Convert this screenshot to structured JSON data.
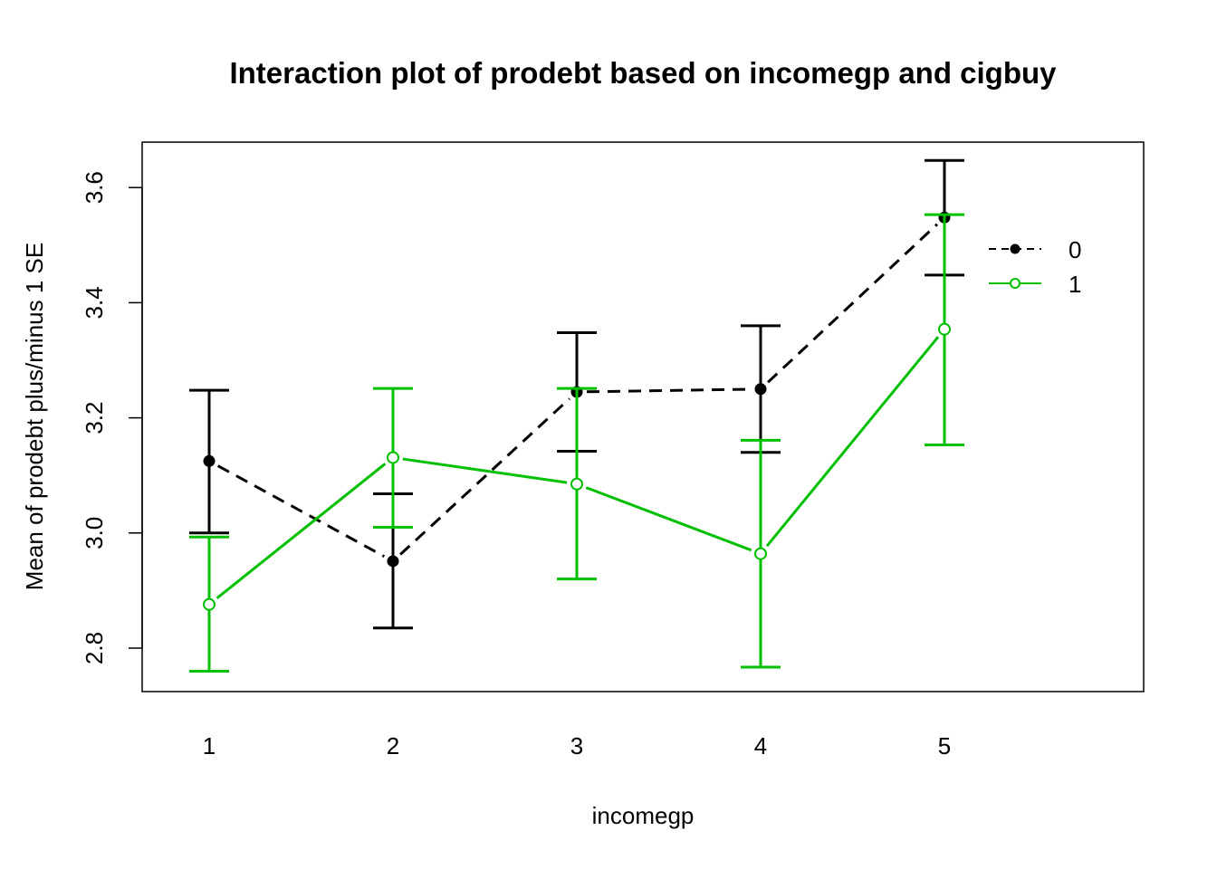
{
  "chart_data": {
    "type": "line",
    "title": "Interaction plot of prodebt based on incomegp and cigbuy",
    "xlabel": "incomegp",
    "ylabel": "Mean of  prodebt plus/minus 1 SE",
    "categories": [
      "1",
      "2",
      "3",
      "4",
      "5"
    ],
    "ylim": [
      2.73,
      3.68
    ],
    "yticks": [
      "2.8",
      "3.0",
      "3.2",
      "3.4",
      "3.6"
    ],
    "grid": false,
    "legend_position": "top-right",
    "series": [
      {
        "name": "0",
        "color": "#000000",
        "line_style": "dashed",
        "marker": "filled-circle",
        "values": [
          3.125,
          2.951,
          3.245,
          3.25,
          3.548
        ],
        "se_lower": [
          3.0,
          2.835,
          3.142,
          3.14,
          3.448
        ],
        "se_upper": [
          3.248,
          3.068,
          3.348,
          3.36,
          3.647
        ]
      },
      {
        "name": "1",
        "color": "#00c000",
        "line_style": "solid",
        "marker": "open-circle",
        "values": [
          2.876,
          3.131,
          3.085,
          2.964,
          3.354
        ],
        "se_lower": [
          2.76,
          3.01,
          2.92,
          2.767,
          3.153
        ],
        "se_upper": [
          2.993,
          3.251,
          3.251,
          3.161,
          3.553
        ]
      }
    ]
  }
}
